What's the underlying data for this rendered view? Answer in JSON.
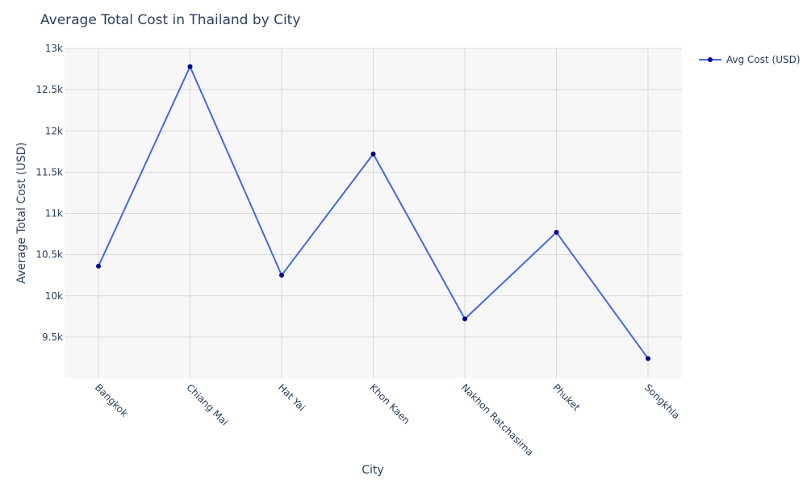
{
  "chart_data": {
    "type": "line",
    "title": "Average Total Cost in Thailand by City",
    "xlabel": "City",
    "ylabel": "Average Total Cost (USD)",
    "categories": [
      "Bangkok",
      "Chiang Mai",
      "Hat Yai",
      "Khon Kaen",
      "Nakhon Ratchasima",
      "Phuket",
      "Songkhla"
    ],
    "series": [
      {
        "name": "Avg Cost (USD)",
        "values": [
          10360,
          12780,
          10250,
          11720,
          9720,
          10770,
          9240
        ],
        "line_color": "#4169e1",
        "marker_color": "#00008b"
      }
    ],
    "ylim": [
      9000,
      13000
    ],
    "yticks": [
      9500,
      10000,
      10500,
      11000,
      11500,
      12000,
      12500,
      13000
    ],
    "ytick_labels": [
      "9.5k",
      "10k",
      "10.5k",
      "11k",
      "11.5k",
      "12k",
      "12.5k",
      "13k"
    ],
    "grid": true,
    "legend_position": "top-right",
    "plot_background": "#f7f7f7",
    "grid_color": "#d9d9d9"
  }
}
